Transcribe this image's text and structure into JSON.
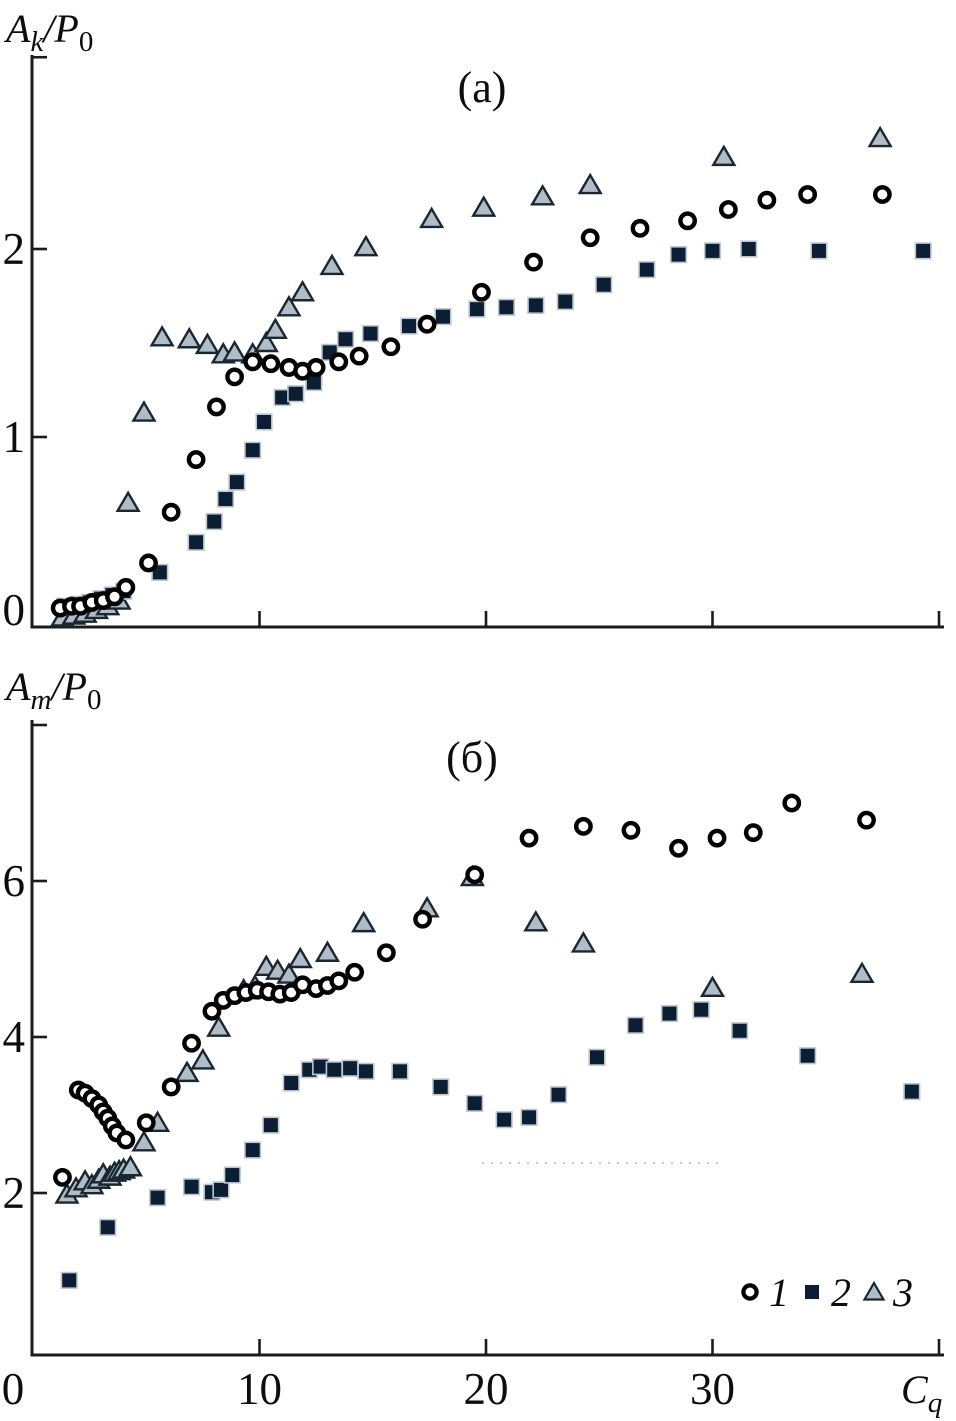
{
  "figure": {
    "colors": {
      "axis": "#1b1b1b",
      "text": "#0d0d0d",
      "square_fill": "#0c1e33",
      "square_stroke": "#bcc7d0",
      "triangle_fill": "#b0bcc6",
      "triangle_stroke": "#1a2733",
      "circle_fill": "#ffffff",
      "circle_stroke": "#000000",
      "artifact": "#c9c9c9"
    },
    "legend": {
      "items": [
        {
          "marker": "circle",
          "label": "1"
        },
        {
          "marker": "square",
          "label": "2"
        },
        {
          "marker": "triangle",
          "label": "3"
        }
      ]
    }
  },
  "chart_data": [
    {
      "type": "scatter",
      "panel": "a",
      "title": "(а)",
      "ylabel": "Ak/P0",
      "ylabel_parts": [
        [
          "A",
          "i"
        ],
        [
          "k",
          "is"
        ],
        [
          "/P",
          "i"
        ],
        [
          "0",
          "s"
        ]
      ],
      "xlabel": "",
      "xlim": [
        0,
        40.3
      ],
      "ylim": [
        0,
        3.03
      ],
      "grid": false,
      "yticks": [
        {
          "v": 0,
          "label": "0",
          "tick": false,
          "dy": 0
        },
        {
          "v": 1,
          "label": "1"
        },
        {
          "v": 2,
          "label": "2"
        },
        {
          "v": 3.02,
          "label": ""
        }
      ],
      "xticks": [
        {
          "v": 10,
          "label": ""
        },
        {
          "v": 20,
          "label": ""
        },
        {
          "v": 30,
          "label": ""
        },
        {
          "v": 40,
          "label": ""
        }
      ],
      "series": [
        {
          "name": "1",
          "marker": "circle",
          "points": [
            [
              1.2,
              0.09
            ],
            [
              1.7,
              0.1
            ],
            [
              2.1,
              0.1
            ],
            [
              2.6,
              0.12
            ],
            [
              3.1,
              0.13
            ],
            [
              3.6,
              0.15
            ],
            [
              4.1,
              0.2
            ],
            [
              5.1,
              0.33
            ],
            [
              6.1,
              0.6
            ],
            [
              7.2,
              0.88
            ],
            [
              8.1,
              1.16
            ],
            [
              8.9,
              1.32
            ],
            [
              9.7,
              1.4
            ],
            [
              10.5,
              1.39
            ],
            [
              11.3,
              1.37
            ],
            [
              11.9,
              1.35
            ],
            [
              12.5,
              1.37
            ],
            [
              13.5,
              1.4
            ],
            [
              14.4,
              1.43
            ],
            [
              15.8,
              1.48
            ],
            [
              17.4,
              1.6
            ],
            [
              19.8,
              1.77
            ],
            [
              22.1,
              1.93
            ],
            [
              24.6,
              2.06
            ],
            [
              26.8,
              2.11
            ],
            [
              28.9,
              2.15
            ],
            [
              30.7,
              2.21
            ],
            [
              32.4,
              2.26
            ],
            [
              34.2,
              2.29
            ],
            [
              37.5,
              2.29
            ]
          ]
        },
        {
          "name": "2",
          "marker": "square",
          "points": [
            [
              1.4,
              0.1
            ],
            [
              2.0,
              0.11
            ],
            [
              2.5,
              0.12
            ],
            [
              3.0,
              0.14
            ],
            [
              3.5,
              0.16
            ],
            [
              4.0,
              0.18
            ],
            [
              5.6,
              0.28
            ],
            [
              7.2,
              0.44
            ],
            [
              8.0,
              0.55
            ],
            [
              8.5,
              0.67
            ],
            [
              9.0,
              0.76
            ],
            [
              9.7,
              0.93
            ],
            [
              10.2,
              1.08
            ],
            [
              11.0,
              1.21
            ],
            [
              11.6,
              1.23
            ],
            [
              12.4,
              1.29
            ],
            [
              13.1,
              1.45
            ],
            [
              13.8,
              1.52
            ],
            [
              14.9,
              1.55
            ],
            [
              16.6,
              1.59
            ],
            [
              18.1,
              1.64
            ],
            [
              19.6,
              1.68
            ],
            [
              20.9,
              1.69
            ],
            [
              22.2,
              1.7
            ],
            [
              23.5,
              1.72
            ],
            [
              25.2,
              1.81
            ],
            [
              27.1,
              1.89
            ],
            [
              28.5,
              1.97
            ],
            [
              30.0,
              1.99
            ],
            [
              31.6,
              2.0
            ],
            [
              34.7,
              1.99
            ],
            [
              39.3,
              1.99
            ]
          ]
        },
        {
          "name": "3",
          "marker": "triangle",
          "points": [
            [
              1.3,
              0.04
            ],
            [
              1.8,
              0.05
            ],
            [
              2.3,
              0.06
            ],
            [
              2.8,
              0.08
            ],
            [
              3.3,
              0.1
            ],
            [
              3.8,
              0.13
            ],
            [
              4.2,
              0.65
            ],
            [
              4.9,
              1.13
            ],
            [
              5.7,
              1.53
            ],
            [
              6.9,
              1.52
            ],
            [
              7.7,
              1.49
            ],
            [
              8.4,
              1.44
            ],
            [
              8.9,
              1.45
            ],
            [
              9.7,
              1.44
            ],
            [
              10.3,
              1.5
            ],
            [
              10.7,
              1.57
            ],
            [
              11.3,
              1.69
            ],
            [
              11.9,
              1.77
            ],
            [
              13.2,
              1.91
            ],
            [
              14.7,
              2.01
            ],
            [
              17.6,
              2.16
            ],
            [
              19.9,
              2.22
            ],
            [
              22.5,
              2.28
            ],
            [
              24.6,
              2.34
            ],
            [
              30.5,
              2.49
            ],
            [
              37.4,
              2.59
            ]
          ]
        }
      ]
    },
    {
      "type": "scatter",
      "panel": "b",
      "title": "(б)",
      "ylabel": "Am/P0",
      "ylabel_parts": [
        [
          "A",
          "i"
        ],
        [
          "m",
          "is"
        ],
        [
          "/P",
          "i"
        ],
        [
          "0",
          "s"
        ]
      ],
      "xlabel": "Cq",
      "xlabel_parts": [
        [
          "C",
          "i"
        ],
        [
          "q",
          "is"
        ]
      ],
      "xlim": [
        0,
        40.3
      ],
      "ylim": [
        0,
        8.1
      ],
      "grid": false,
      "yticks": [
        {
          "v": 2,
          "label": "2"
        },
        {
          "v": 4,
          "label": "4"
        },
        {
          "v": 6,
          "label": "6"
        },
        {
          "v": 8,
          "label": ""
        }
      ],
      "xticks": [
        {
          "v": 0,
          "label": "0",
          "tick": false,
          "dx": -20
        },
        {
          "v": 10,
          "label": "10"
        },
        {
          "v": 20,
          "label": "20"
        },
        {
          "v": 30,
          "label": "30"
        },
        {
          "v": 40,
          "label": ""
        }
      ],
      "series": [
        {
          "name": "1",
          "marker": "circle",
          "points": [
            [
              1.3,
              2.2
            ],
            [
              2.0,
              3.32
            ],
            [
              2.3,
              3.28
            ],
            [
              2.6,
              3.21
            ],
            [
              2.9,
              3.13
            ],
            [
              3.1,
              3.04
            ],
            [
              3.3,
              2.96
            ],
            [
              3.5,
              2.86
            ],
            [
              3.7,
              2.77
            ],
            [
              4.1,
              2.68
            ],
            [
              5.0,
              2.9
            ],
            [
              6.1,
              3.36
            ],
            [
              7.0,
              3.92
            ],
            [
              7.9,
              4.33
            ],
            [
              8.4,
              4.47
            ],
            [
              8.9,
              4.53
            ],
            [
              9.4,
              4.57
            ],
            [
              9.9,
              4.6
            ],
            [
              10.4,
              4.58
            ],
            [
              10.9,
              4.55
            ],
            [
              11.4,
              4.57
            ],
            [
              11.9,
              4.67
            ],
            [
              12.5,
              4.62
            ],
            [
              13.0,
              4.66
            ],
            [
              13.5,
              4.72
            ],
            [
              14.2,
              4.83
            ],
            [
              15.6,
              5.08
            ],
            [
              17.2,
              5.51
            ],
            [
              19.5,
              6.08
            ],
            [
              21.9,
              6.55
            ],
            [
              24.3,
              6.7
            ],
            [
              26.4,
              6.65
            ],
            [
              28.5,
              6.42
            ],
            [
              30.2,
              6.55
            ],
            [
              31.8,
              6.62
            ],
            [
              33.5,
              7.0
            ],
            [
              36.8,
              6.78
            ]
          ]
        },
        {
          "name": "2",
          "marker": "square",
          "points": [
            [
              1.6,
              0.88
            ],
            [
              3.3,
              1.56
            ],
            [
              5.5,
              1.94
            ],
            [
              7.0,
              2.08
            ],
            [
              7.9,
              2.01
            ],
            [
              8.3,
              2.04
            ],
            [
              8.8,
              2.23
            ],
            [
              9.7,
              2.55
            ],
            [
              10.5,
              2.87
            ],
            [
              11.4,
              3.41
            ],
            [
              12.2,
              3.58
            ],
            [
              12.7,
              3.62
            ],
            [
              13.3,
              3.58
            ],
            [
              14.0,
              3.6
            ],
            [
              14.7,
              3.56
            ],
            [
              16.2,
              3.56
            ],
            [
              18.0,
              3.36
            ],
            [
              19.5,
              3.15
            ],
            [
              20.8,
              2.94
            ],
            [
              21.9,
              2.97
            ],
            [
              23.2,
              3.26
            ],
            [
              24.9,
              3.74
            ],
            [
              26.6,
              4.15
            ],
            [
              28.1,
              4.3
            ],
            [
              29.5,
              4.35
            ],
            [
              31.2,
              4.08
            ],
            [
              34.2,
              3.76
            ],
            [
              38.8,
              3.3
            ]
          ]
        },
        {
          "name": "3",
          "marker": "triangle",
          "points": [
            [
              1.5,
              1.98
            ],
            [
              1.9,
              2.06
            ],
            [
              2.3,
              2.15
            ],
            [
              2.6,
              2.1
            ],
            [
              2.9,
              2.17
            ],
            [
              3.1,
              2.24
            ],
            [
              3.4,
              2.21
            ],
            [
              3.6,
              2.26
            ],
            [
              3.8,
              2.28
            ],
            [
              4.0,
              2.3
            ],
            [
              4.3,
              2.33
            ],
            [
              4.9,
              2.65
            ],
            [
              5.5,
              2.9
            ],
            [
              6.8,
              3.54
            ],
            [
              7.5,
              3.7
            ],
            [
              8.2,
              4.12
            ],
            [
              9.3,
              4.6
            ],
            [
              9.8,
              4.65
            ],
            [
              10.3,
              4.9
            ],
            [
              10.8,
              4.85
            ],
            [
              11.3,
              4.8
            ],
            [
              11.8,
              5.0
            ],
            [
              13.0,
              5.08
            ],
            [
              14.6,
              5.46
            ],
            [
              17.4,
              5.65
            ],
            [
              19.4,
              6.05
            ],
            [
              22.2,
              5.47
            ],
            [
              24.3,
              5.2
            ],
            [
              30.0,
              4.63
            ],
            [
              36.6,
              4.81
            ]
          ]
        }
      ]
    }
  ]
}
